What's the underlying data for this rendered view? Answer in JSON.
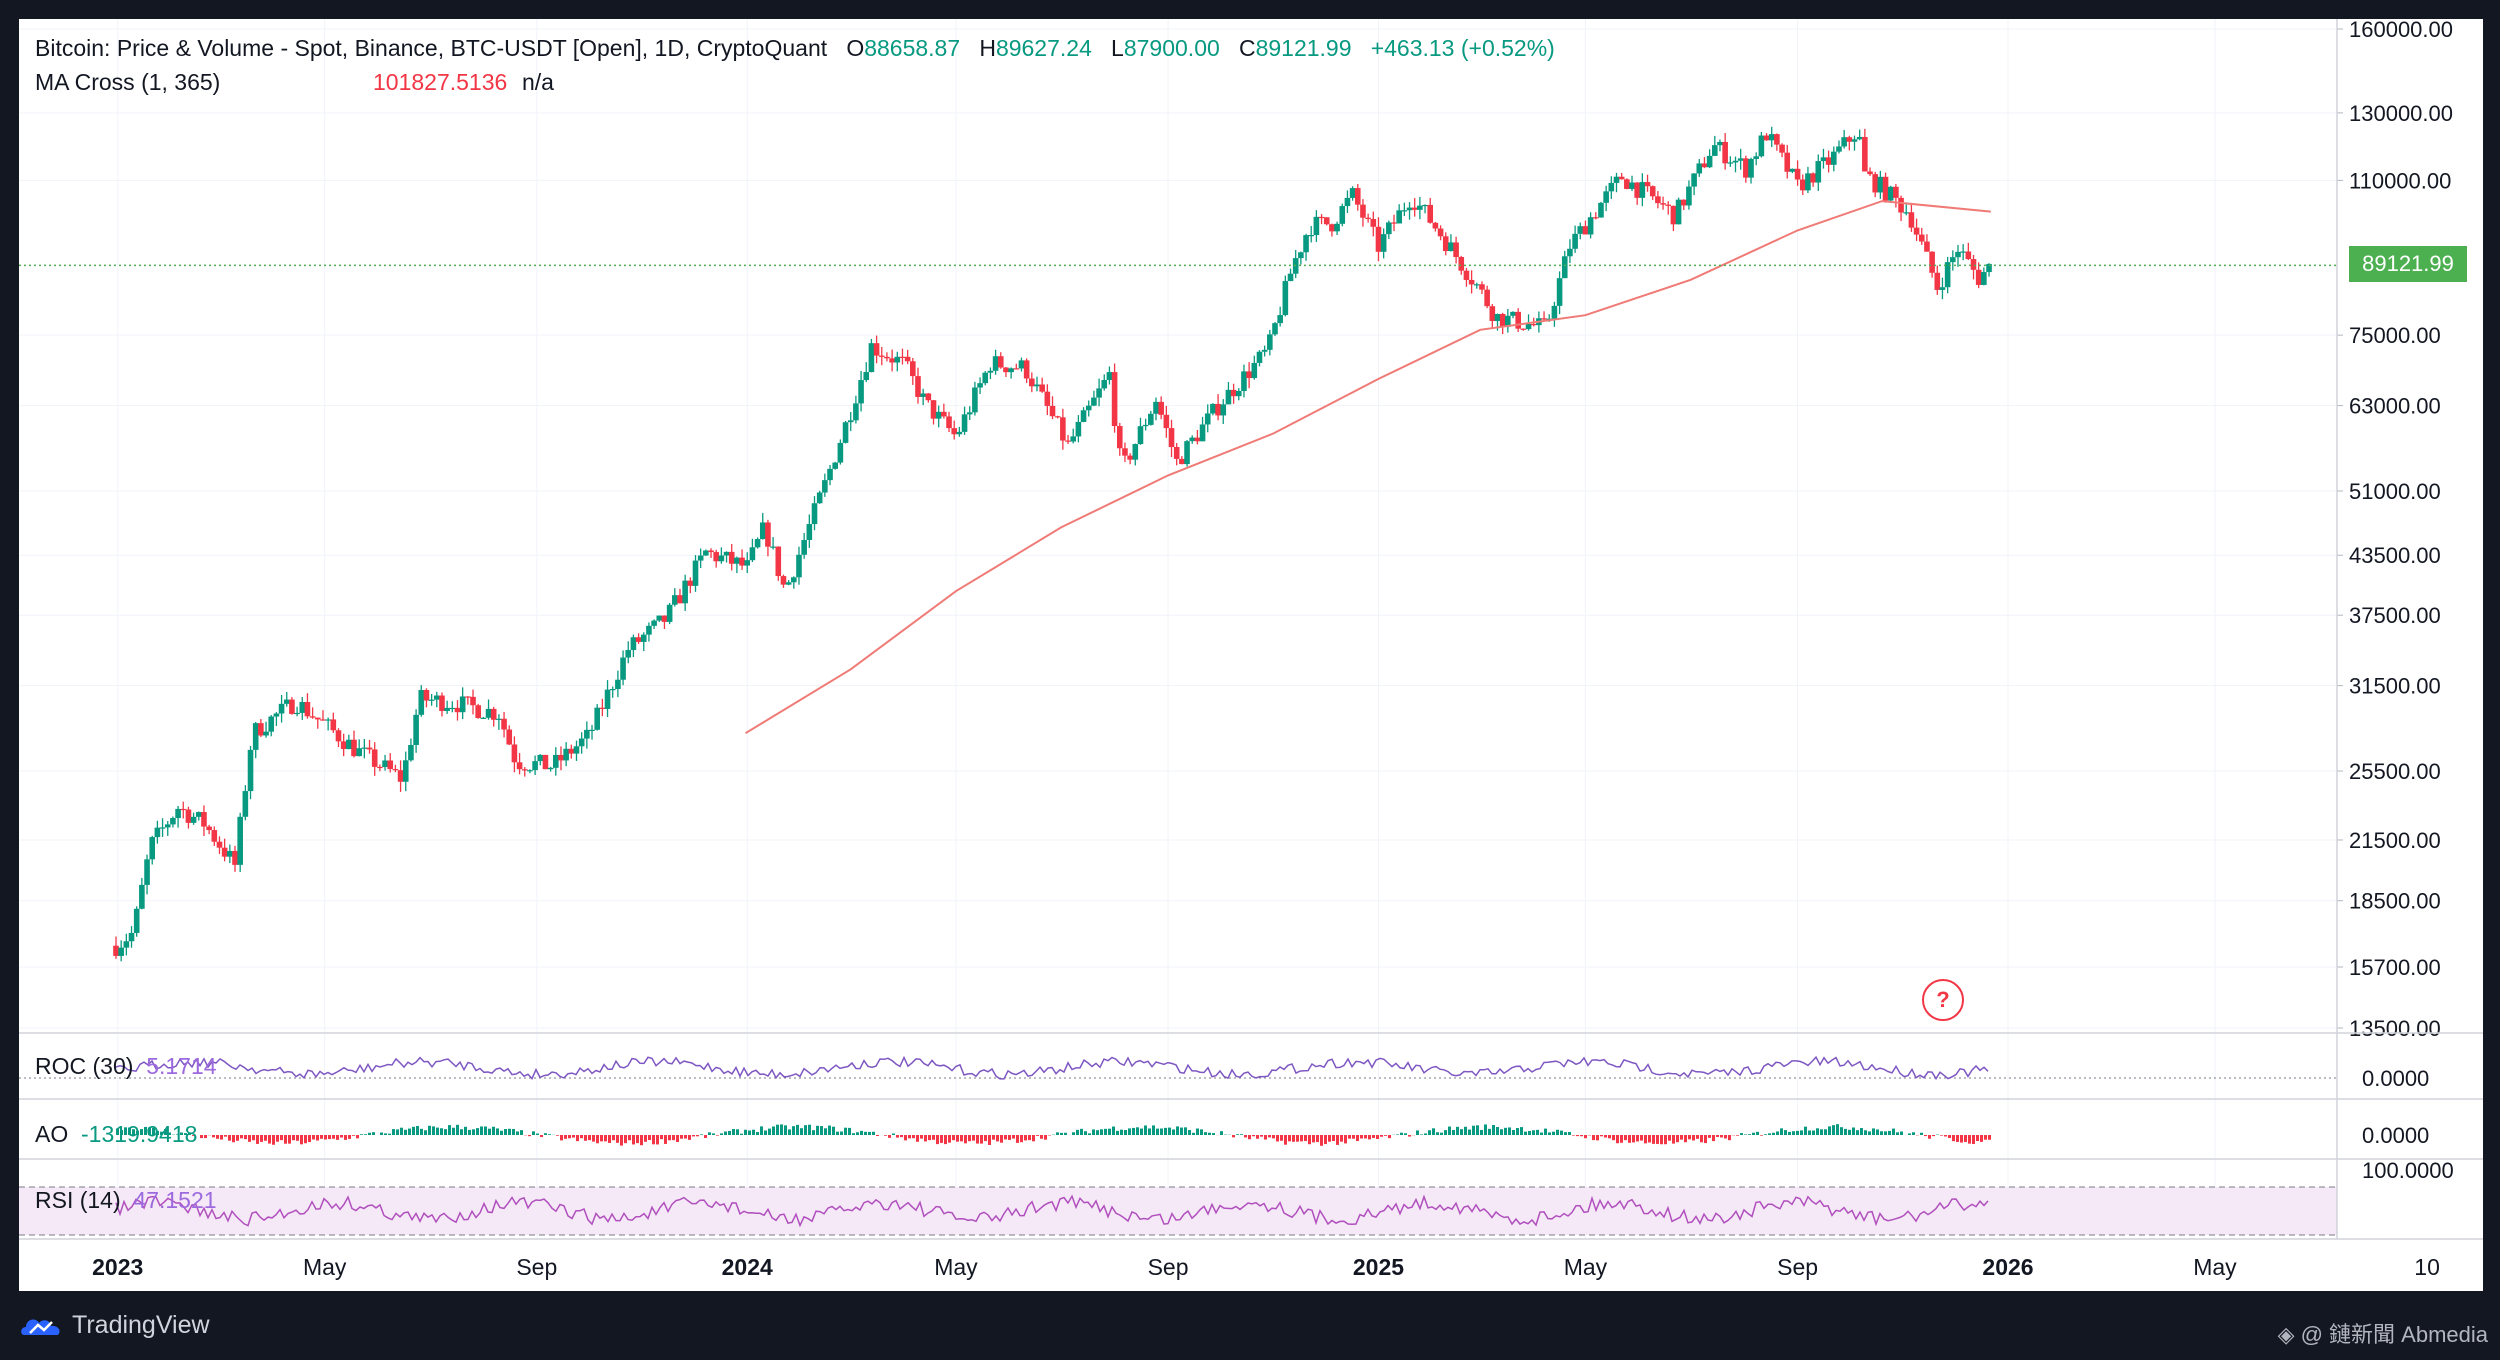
{
  "legend": {
    "title": "Bitcoin: Price & Volume - Spot, Binance, BTC-USDT [Open], 1D, CryptoQuant",
    "o_label": "O",
    "o_value": "88658.87",
    "h_label": "H",
    "h_value": "89627.24",
    "l_label": "L",
    "l_value": "87900.00",
    "c_label": "C",
    "c_value": "89121.99",
    "change": "+463.13 (+0.52%)",
    "ma_label": "MA Cross (1, 365)",
    "ma_value": "101827.5136",
    "ma_na": "n/a",
    "roc_label": "ROC (30)",
    "roc_value": "5.1714",
    "ao_label": "AO",
    "ao_value": "-1319.9418",
    "rsi_label": "RSI (14)",
    "rsi_value": "47.1521"
  },
  "last_price_tag": "89121.99",
  "help_icon": "question-circle-icon",
  "footer": {
    "brand": "TradingView",
    "watermark": "◈ @ 鏈新聞 Abmedia"
  },
  "colors": {
    "up": "#089981",
    "down": "#f23645",
    "ma": "#f07a76",
    "roc": "#7e57c2",
    "rsi": "#b04fbd",
    "last_price": "#4caf50"
  },
  "chart_data": {
    "type": "line",
    "title": "Bitcoin: Price & Volume - Spot, Binance, BTC-USDT [Open], 1D, CryptoQuant",
    "x_tick_labels": [
      "2023",
      "May",
      "Sep",
      "2024",
      "May",
      "Sep",
      "2025",
      "May",
      "Sep",
      "2026",
      "May",
      "10"
    ],
    "y_scale": "log",
    "y_tick_labels": [
      "160000.00",
      "130000.00",
      "110000.00",
      "75000.00",
      "63000.00",
      "51000.00",
      "43500.00",
      "37500.00",
      "31500.00",
      "25500.00",
      "21500.00",
      "18500.00",
      "15700.00",
      "13500.00"
    ],
    "ylim": [
      13500,
      160000
    ],
    "grid": true,
    "series": [
      {
        "name": "Bitcoin: Price & Volume - Spot, Binance, BTC-USDT [Open]",
        "x": [
          "2022-12-31",
          "2023-01-10",
          "2023-01-20",
          "2023-02-05",
          "2023-02-20",
          "2023-03-10",
          "2023-03-20",
          "2023-04-14",
          "2023-05-01",
          "2023-05-20",
          "2023-06-15",
          "2023-06-25",
          "2023-07-15",
          "2023-08-10",
          "2023-08-20",
          "2023-09-10",
          "2023-10-01",
          "2023-10-24",
          "2023-11-15",
          "2023-12-08",
          "2024-01-01",
          "2024-01-11",
          "2024-01-23",
          "2024-02-15",
          "2024-03-01",
          "2024-03-13",
          "2024-04-01",
          "2024-04-13",
          "2024-05-01",
          "2024-05-21",
          "2024-06-10",
          "2024-07-05",
          "2024-07-29",
          "2024-08-05",
          "2024-08-25",
          "2024-09-06",
          "2024-10-01",
          "2024-10-29",
          "2024-11-12",
          "2024-11-22",
          "2024-12-05",
          "2024-12-17",
          "2025-01-01",
          "2025-01-20",
          "2025-02-05",
          "2025-02-28",
          "2025-03-10",
          "2025-04-08",
          "2025-04-22",
          "2025-05-10",
          "2025-05-22",
          "2025-06-10",
          "2025-06-22",
          "2025-07-14",
          "2025-08-02",
          "2025-08-14",
          "2025-09-01",
          "2025-09-20",
          "2025-10-06",
          "2025-10-10",
          "2025-10-20",
          "2025-11-05",
          "2025-11-21",
          "2025-12-03",
          "2025-12-15",
          "2025-12-22"
        ],
        "values": [
          16550,
          17100,
          21200,
          23300,
          22400,
          20200,
          28000,
          30300,
          28600,
          26800,
          25000,
          30500,
          30200,
          29400,
          26100,
          25800,
          27800,
          34500,
          37200,
          43800,
          42200,
          46600,
          39800,
          51800,
          62300,
          73000,
          69800,
          63400,
          58300,
          70000,
          69200,
          57000,
          68000,
          53500,
          64000,
          54800,
          63300,
          72300,
          88700,
          98400,
          99000,
          106000,
          93400,
          106000,
          97000,
          84300,
          78500,
          76300,
          93600,
          103900,
          111000,
          104800,
          100800,
          120000,
          113300,
          123500,
          108300,
          115700,
          124700,
          111500,
          108000,
          101300,
          84500,
          93000,
          86400,
          89121.99
        ]
      },
      {
        "name": "MA Cross (1, 365)",
        "x": [
          "2023-12-31",
          "2024-03-01",
          "2024-05-01",
          "2024-07-01",
          "2024-09-01",
          "2024-11-01",
          "2025-01-01",
          "2025-03-01",
          "2025-05-01",
          "2025-07-01",
          "2025-09-01",
          "2025-10-20",
          "2025-12-22"
        ],
        "values": [
          28000,
          32800,
          39800,
          46600,
          53000,
          58800,
          67300,
          76000,
          78800,
          86000,
          97200,
          104500,
          101827.5136
        ]
      },
      {
        "name": "ROC (30)",
        "last_value": 5.1714
      },
      {
        "name": "AO",
        "last_value": -1319.9418
      },
      {
        "name": "RSI (14)",
        "last_value": 47.1521
      }
    ],
    "price_axis_last": 89121.99,
    "osc_axis_labels": [
      "0.0000",
      "0.0000",
      "100.0000"
    ]
  }
}
